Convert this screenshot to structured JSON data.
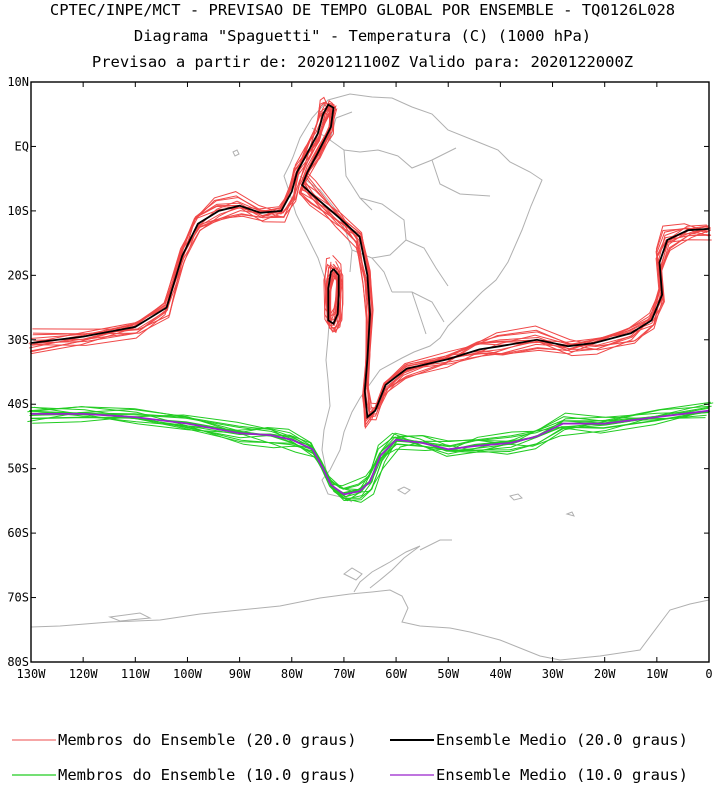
{
  "header": {
    "line1": "CPTEC/INPE/MCT - PREVISAO DE TEMPO GLOBAL POR ENSEMBLE - TQ0126L028",
    "line2": "Diagrama \"Spaguetti\" - Temperatura (C) (1000 hPa)",
    "line3": "Previsao a partir de: 2020121100Z  Valido para: 2020122000Z"
  },
  "chart_data": {
    "type": "line",
    "xlim": [
      -130,
      0
    ],
    "ylim": [
      -80,
      10
    ],
    "x_ticks": [
      {
        "value": -130,
        "label": "130W"
      },
      {
        "value": -120,
        "label": "120W"
      },
      {
        "value": -110,
        "label": "110W"
      },
      {
        "value": -100,
        "label": "100W"
      },
      {
        "value": -90,
        "label": "90W"
      },
      {
        "value": -80,
        "label": "80W"
      },
      {
        "value": -70,
        "label": "70W"
      },
      {
        "value": -60,
        "label": "60W"
      },
      {
        "value": -50,
        "label": "50W"
      },
      {
        "value": -40,
        "label": "40W"
      },
      {
        "value": -30,
        "label": "30W"
      },
      {
        "value": -20,
        "label": "20W"
      },
      {
        "value": -10,
        "label": "10W"
      },
      {
        "value": 0,
        "label": "0"
      }
    ],
    "y_ticks": [
      {
        "value": 10,
        "label": "10N"
      },
      {
        "value": 0,
        "label": "EQ"
      },
      {
        "value": -10,
        "label": "10S"
      },
      {
        "value": -20,
        "label": "20S"
      },
      {
        "value": -30,
        "label": "30S"
      },
      {
        "value": -40,
        "label": "40S"
      },
      {
        "value": -50,
        "label": "50S"
      },
      {
        "value": -60,
        "label": "60S"
      },
      {
        "value": -70,
        "label": "70S"
      },
      {
        "value": -80,
        "label": "80S"
      }
    ],
    "colors": {
      "member20": "#f04848",
      "mean20": "#000000",
      "member10": "#22cc22",
      "mean10": "#9922cc",
      "coast": "#b0b0b0"
    },
    "legend": [
      {
        "label": "Membros do Ensemble (20.0 graus)",
        "color": "#f07070"
      },
      {
        "label": "Ensemble Medio (20.0 graus)",
        "color": "#000000"
      },
      {
        "label": "Membros do Ensemble (10.0 graus)",
        "color": "#22cc22"
      },
      {
        "label": "Ensemble Medio (10.0 graus)",
        "color": "#9922cc"
      }
    ],
    "member_count": 14,
    "series": [
      {
        "name": "Ensemble Medio (20.0 graus)",
        "kind": "mean20",
        "points": [
          [
            -130,
            -30.5
          ],
          [
            -120,
            -29.5
          ],
          [
            -110,
            -28
          ],
          [
            -104,
            -25
          ],
          [
            -101,
            -17
          ],
          [
            -98,
            -12
          ],
          [
            -94,
            -10
          ],
          [
            -90,
            -9.2
          ],
          [
            -86,
            -10.3
          ],
          [
            -82,
            -10
          ],
          [
            -80,
            -7
          ],
          [
            -79,
            -4
          ],
          [
            -77,
            -1
          ],
          [
            -75,
            2
          ],
          [
            -74,
            5
          ],
          [
            -73,
            6.5
          ],
          [
            -72,
            6
          ],
          [
            -72.5,
            3
          ],
          [
            -75,
            -1
          ],
          [
            -77,
            -4
          ],
          [
            -78,
            -6
          ],
          [
            -76,
            -7.5
          ],
          [
            -71,
            -11
          ],
          [
            -67,
            -14
          ],
          [
            -65.5,
            -20
          ],
          [
            -65,
            -26
          ],
          [
            -65.5,
            -33
          ],
          [
            -66,
            -38
          ],
          [
            -65.5,
            -42
          ],
          [
            -64,
            -41
          ],
          [
            -62,
            -37
          ],
          [
            -58,
            -34.5
          ],
          [
            -50,
            -33
          ],
          [
            -44,
            -31.5
          ],
          [
            -40,
            -31
          ],
          [
            -33,
            -30
          ],
          [
            -27,
            -31
          ],
          [
            -22,
            -30.5
          ],
          [
            -15,
            -29
          ],
          [
            -11,
            -27
          ],
          [
            -9,
            -23
          ],
          [
            -9.5,
            -18
          ],
          [
            -8,
            -14.5
          ],
          [
            -4,
            -13
          ],
          [
            0,
            -12.8
          ]
        ]
      },
      {
        "name": "Ensemble Medio (20.0 graus)",
        "kind": "mean20",
        "points": [
          [
            -72,
            -19
          ],
          [
            -71,
            -20
          ],
          [
            -71,
            -23
          ],
          [
            -71.2,
            -26
          ],
          [
            -72,
            -27.5
          ],
          [
            -73,
            -27
          ],
          [
            -73,
            -22
          ],
          [
            -72.5,
            -19.5
          ],
          [
            -72,
            -19
          ]
        ]
      },
      {
        "name": "Ensemble Medio (10.0 graus)",
        "kind": "mean10",
        "points": [
          [
            -130,
            -41.5
          ],
          [
            -120,
            -41.5
          ],
          [
            -110,
            -42
          ],
          [
            -100,
            -43
          ],
          [
            -90,
            -44.5
          ],
          [
            -84,
            -44.8
          ],
          [
            -80,
            -45.5
          ],
          [
            -76,
            -47
          ],
          [
            -74,
            -50
          ],
          [
            -72.5,
            -52.5
          ],
          [
            -70,
            -54
          ],
          [
            -67,
            -53.5
          ],
          [
            -65,
            -52
          ],
          [
            -63,
            -48
          ],
          [
            -60,
            -45.5
          ],
          [
            -55,
            -46
          ],
          [
            -50,
            -47
          ],
          [
            -45,
            -46.5
          ],
          [
            -38,
            -46
          ],
          [
            -33,
            -45
          ],
          [
            -28,
            -43
          ],
          [
            -20,
            -43
          ],
          [
            -10,
            -42
          ],
          [
            0,
            -41
          ]
        ]
      }
    ]
  }
}
